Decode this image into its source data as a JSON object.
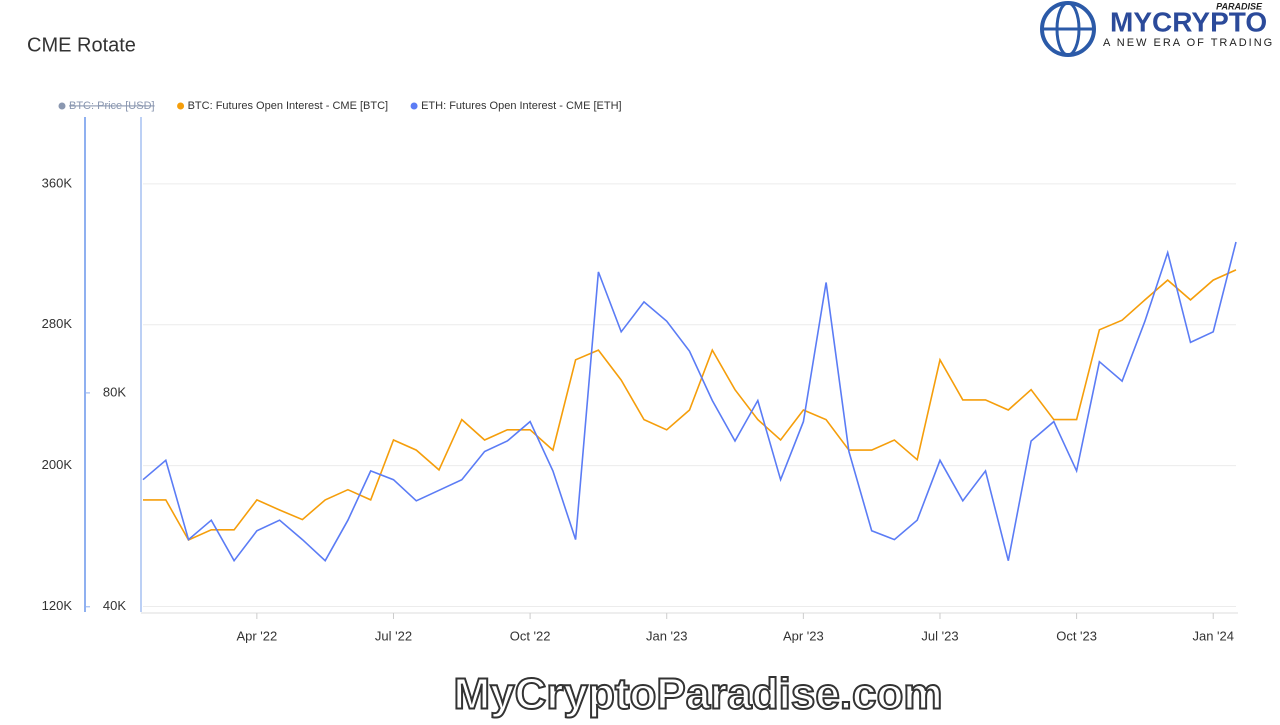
{
  "chart_data": {
    "type": "line",
    "title": "CME Rotate",
    "logo": {
      "brand": "MYCRYPTO",
      "sub": "PARADISE",
      "tagline": "A NEW ERA OF TRADING"
    },
    "watermark": "MyCryptoParadise.com",
    "hidden_series": [
      {
        "name": "BTC: Price [USD]",
        "color": "#8a97b0"
      }
    ],
    "xlim": [
      0,
      48
    ],
    "xticks": [
      {
        "value": 5,
        "label": "Apr '22"
      },
      {
        "value": 11,
        "label": "Jul '22"
      },
      {
        "value": 17,
        "label": "Oct '22"
      },
      {
        "value": 23,
        "label": "Jan '23"
      },
      {
        "value": 29,
        "label": "Apr '23"
      },
      {
        "value": 35,
        "label": "Jul '23"
      },
      {
        "value": 41,
        "label": "Oct '23"
      },
      {
        "value": 47,
        "label": "Jan '24"
      }
    ],
    "ylim": [
      118000,
      398000
    ],
    "yticks": [
      {
        "value": 120000,
        "label": "120K"
      },
      {
        "value": 200000,
        "label": "200K"
      },
      {
        "value": 280000,
        "label": "280K"
      },
      {
        "value": 360000,
        "label": "360K"
      }
    ],
    "y2lim": [
      39400,
      131600
    ],
    "y2ticks": [
      {
        "value": 40000,
        "label": "40K"
      },
      {
        "value": 80000,
        "label": "80K"
      }
    ],
    "grid": true,
    "series": [
      {
        "name": "BTC: Futures Open Interest - CME [BTC]",
        "color": "#f59e0b",
        "axis": "y2",
        "values": [
          60000,
          60000,
          52500,
          54400,
          54400,
          60000,
          58100,
          56300,
          60000,
          61900,
          60000,
          71200,
          69300,
          65600,
          75000,
          71200,
          73100,
          73100,
          69300,
          86200,
          88000,
          82400,
          75000,
          73100,
          76800,
          88000,
          80600,
          75000,
          71200,
          76800,
          75000,
          69300,
          69300,
          71200,
          67500,
          86200,
          78700,
          78700,
          76800,
          80600,
          75000,
          75000,
          91800,
          93600,
          97400,
          101100,
          97400,
          101100,
          103000
        ]
      },
      {
        "name": "ETH: Futures Open Interest - CME [ETH]",
        "color": "#5b7cf5",
        "values": [
          192000,
          203000,
          158000,
          169000,
          146000,
          163000,
          169000,
          158000,
          146000,
          169000,
          197000,
          192000,
          180000,
          186000,
          192000,
          208000,
          214000,
          225000,
          197000,
          158000,
          310000,
          276000,
          293000,
          282000,
          265000,
          237000,
          214000,
          237000,
          192000,
          225000,
          304000,
          208000,
          163000,
          158000,
          169000,
          203000,
          180000,
          197000,
          146000,
          214000,
          225000,
          197000,
          259000,
          248000,
          282000,
          321000,
          270000,
          276000,
          327000
        ]
      }
    ]
  }
}
